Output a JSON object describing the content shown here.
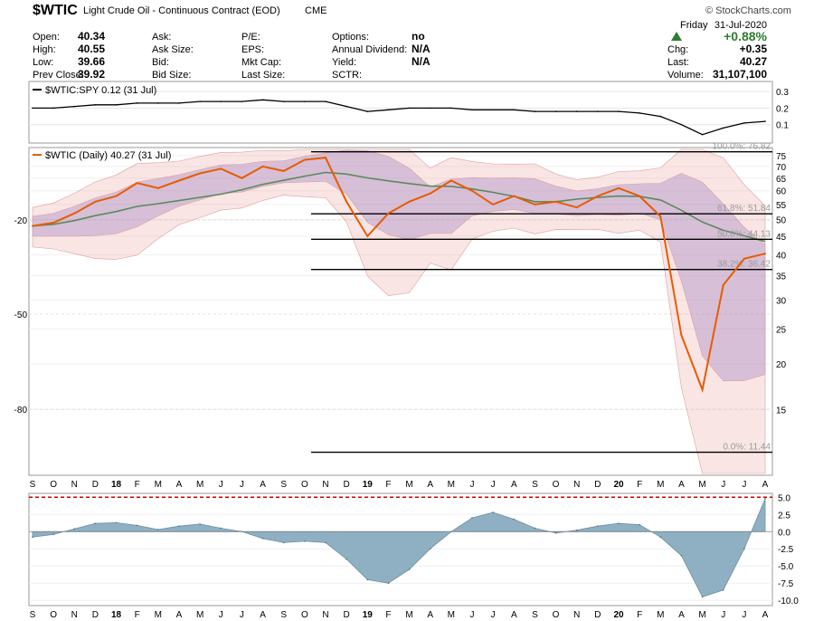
{
  "header": {
    "symbol": "$WTIC",
    "name": "Light Crude Oil - Continuous Contract (EOD)",
    "exchange": "CME",
    "brand": "© StockCharts.com",
    "day": "Friday",
    "date": "31-Jul-2020",
    "change_pct": "+0.88%",
    "chg": "+0.35",
    "last": "40.27",
    "volume": "31,107,100",
    "change_color": "#2e7d32"
  },
  "quote": {
    "col1": [
      {
        "label": "Open:",
        "value": "40.34"
      },
      {
        "label": "High:",
        "value": "40.55"
      },
      {
        "label": "Low:",
        "value": "39.66"
      },
      {
        "label": "Prev Close:",
        "value": "39.92"
      }
    ],
    "col2": [
      {
        "label": "Ask:",
        "value": ""
      },
      {
        "label": "Ask Size:",
        "value": ""
      },
      {
        "label": "Bid:",
        "value": ""
      },
      {
        "label": "Bid Size:",
        "value": ""
      }
    ],
    "col3": [
      {
        "label": "P/E:",
        "value": ""
      },
      {
        "label": "EPS:",
        "value": ""
      },
      {
        "label": "Mkt Cap:",
        "value": ""
      },
      {
        "label": "Last Size:",
        "value": ""
      }
    ],
    "col4": [
      {
        "label": "Options:",
        "value": "no"
      },
      {
        "label": "Annual Dividend:",
        "value": "N/A"
      },
      {
        "label": "Yield:",
        "value": "N/A"
      },
      {
        "label": "SCTR:",
        "value": ""
      }
    ],
    "right_labels": [
      "Chg:",
      "Last:",
      "Volume:"
    ]
  },
  "chart_data": [
    {
      "type": "line",
      "panel": "relative-strength",
      "legend": "$WTIC:SPY 0.12 (31 Jul)",
      "y_ticks": [
        "0.3",
        "0.2",
        "0.1"
      ],
      "ylim": [
        0.0,
        0.35
      ],
      "x": [
        "2017-08",
        "2017-09",
        "2017-10",
        "2017-11",
        "2017-12",
        "2018-01",
        "2018-02",
        "2018-03",
        "2018-04",
        "2018-05",
        "2018-06",
        "2018-07",
        "2018-08",
        "2018-09",
        "2018-10",
        "2018-11",
        "2018-12",
        "2019-01",
        "2019-02",
        "2019-03",
        "2019-04",
        "2019-05",
        "2019-06",
        "2019-07",
        "2019-08",
        "2019-09",
        "2019-10",
        "2019-11",
        "2019-12",
        "2020-01",
        "2020-02",
        "2020-03",
        "2020-04",
        "2020-05",
        "2020-06",
        "2020-07"
      ],
      "values": [
        0.2,
        0.2,
        0.21,
        0.22,
        0.22,
        0.23,
        0.23,
        0.23,
        0.24,
        0.24,
        0.24,
        0.25,
        0.24,
        0.24,
        0.24,
        0.21,
        0.18,
        0.19,
        0.2,
        0.2,
        0.2,
        0.19,
        0.19,
        0.19,
        0.18,
        0.18,
        0.18,
        0.18,
        0.18,
        0.17,
        0.15,
        0.1,
        0.04,
        0.08,
        0.11,
        0.12
      ]
    },
    {
      "type": "line",
      "panel": "price",
      "legend": "$WTIC (Daily) 40.27 (31 Jul)",
      "log_scale": true,
      "ylim": [
        10,
        78
      ],
      "y_ticks": [
        75,
        70,
        65,
        60,
        55,
        50,
        45,
        40,
        35,
        30,
        25,
        20,
        15
      ],
      "left_ticks": [
        "-20",
        "-50",
        "-80"
      ],
      "x_labels": [
        "S",
        "O",
        "N",
        "D",
        "18",
        "F",
        "M",
        "A",
        "M",
        "J",
        "J",
        "A",
        "S",
        "O",
        "N",
        "D",
        "19",
        "F",
        "M",
        "A",
        "M",
        "J",
        "J",
        "A",
        "S",
        "O",
        "N",
        "D",
        "20",
        "F",
        "M",
        "A",
        "M",
        "J",
        "J",
        "A"
      ],
      "x": [
        "2017-08",
        "2017-09",
        "2017-10",
        "2017-11",
        "2017-12",
        "2018-01",
        "2018-02",
        "2018-03",
        "2018-04",
        "2018-05",
        "2018-06",
        "2018-07",
        "2018-08",
        "2018-09",
        "2018-10",
        "2018-11",
        "2018-12",
        "2019-01",
        "2019-02",
        "2019-03",
        "2019-04",
        "2019-05",
        "2019-06",
        "2019-07",
        "2019-08",
        "2019-09",
        "2019-10",
        "2019-11",
        "2019-12",
        "2020-01",
        "2020-02",
        "2020-03",
        "2020-04",
        "2020-05",
        "2020-06",
        "2020-07"
      ],
      "series": [
        {
          "name": "$WTIC (Daily) 40.27 (31 Jul)",
          "color": "#e65c00",
          "values": [
            48,
            49,
            52,
            56,
            58,
            63,
            61,
            64,
            67,
            69,
            65,
            70,
            68,
            73,
            74,
            56,
            45,
            52,
            56,
            59,
            64,
            60,
            55,
            58,
            55,
            56,
            54,
            58,
            61,
            58,
            51,
            24,
            17,
            33,
            39,
            40.27
          ]
        }
      ],
      "fib_levels": [
        {
          "label": "100.0%: 76.82",
          "value": 76.82
        },
        {
          "label": "61.8%: 51.84",
          "value": 51.84
        },
        {
          "label": "50.0%: 44.13",
          "value": 44.13
        },
        {
          "label": "38.2%: 36.42",
          "value": 36.42
        },
        {
          "label": "0.0%: 11.44",
          "value": 11.44
        }
      ]
    },
    {
      "type": "area",
      "panel": "momentum",
      "y_ticks": [
        "5.0",
        "2.5",
        "0.0",
        "-2.5",
        "-5.0",
        "-7.5",
        "-10.0"
      ],
      "ylim": [
        -10.5,
        5.3
      ],
      "threshold": 5.0,
      "x_labels": [
        "S",
        "O",
        "N",
        "D",
        "18",
        "F",
        "M",
        "A",
        "M",
        "J",
        "J",
        "A",
        "S",
        "O",
        "N",
        "D",
        "19",
        "F",
        "M",
        "A",
        "M",
        "J",
        "J",
        "A",
        "S",
        "O",
        "N",
        "D",
        "20",
        "F",
        "M",
        "A",
        "M",
        "J",
        "J",
        "A"
      ],
      "x": [
        "2017-08",
        "2017-09",
        "2017-10",
        "2017-11",
        "2017-12",
        "2018-01",
        "2018-02",
        "2018-03",
        "2018-04",
        "2018-05",
        "2018-06",
        "2018-07",
        "2018-08",
        "2018-09",
        "2018-10",
        "2018-11",
        "2018-12",
        "2019-01",
        "2019-02",
        "2019-03",
        "2019-04",
        "2019-05",
        "2019-06",
        "2019-07",
        "2019-08",
        "2019-09",
        "2019-10",
        "2019-11",
        "2019-12",
        "2020-01",
        "2020-02",
        "2020-03",
        "2020-04",
        "2020-05",
        "2020-06",
        "2020-07"
      ],
      "values": [
        -0.8,
        -0.4,
        0.4,
        1.2,
        1.3,
        0.9,
        0.3,
        0.8,
        1.1,
        0.5,
        0.0,
        -1.0,
        -1.6,
        -1.4,
        -1.6,
        -4.0,
        -7.0,
        -7.5,
        -5.5,
        -2.5,
        0.0,
        2.0,
        2.8,
        1.8,
        0.5,
        -0.2,
        0.2,
        0.8,
        1.2,
        1.0,
        -0.8,
        -3.5,
        -9.5,
        -8.5,
        -2.5,
        4.8
      ]
    }
  ]
}
